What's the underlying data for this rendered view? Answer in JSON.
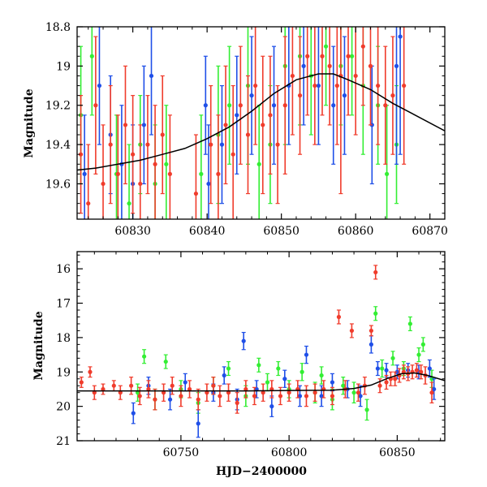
{
  "chart_data": [
    {
      "type": "scatter",
      "title": "",
      "xlabel": "",
      "ylabel": "Magnitude",
      "xlim": [
        60822.5,
        60872
      ],
      "ylim": [
        19.78,
        18.8
      ],
      "y_inverted": true,
      "grid": false,
      "x_ticks": [
        60830,
        60840,
        60850,
        60860,
        60870
      ],
      "y_ticks": [
        18.8,
        19,
        19.2,
        19.4,
        19.6
      ],
      "y_tick_labels": [
        "18.8",
        "19",
        "19.2",
        "19.4",
        "19.6"
      ],
      "series": [
        {
          "color": "#33ee33",
          "points": [
            [
              60823.0,
              19.25,
              0.35
            ],
            [
              60824.5,
              18.95,
              0.3
            ],
            [
              60827.8,
              19.55,
              0.3
            ],
            [
              60829.5,
              19.7,
              0.3
            ],
            [
              60831.0,
              19.4,
              0.25
            ],
            [
              60833.0,
              19.6,
              0.3
            ],
            [
              60834.5,
              19.5,
              0.3
            ],
            [
              60839.2,
              19.55,
              0.3
            ],
            [
              60841.5,
              19.35,
              0.35
            ],
            [
              60843.0,
              19.2,
              0.3
            ],
            [
              60845.5,
              19.1,
              0.4
            ],
            [
              60847.0,
              19.5,
              0.3
            ],
            [
              60848.5,
              19.4,
              0.3
            ],
            [
              60850.5,
              19.0,
              0.4
            ],
            [
              60852.5,
              18.95,
              0.35
            ],
            [
              60854.0,
              19.05,
              0.3
            ],
            [
              60856.0,
              18.9,
              0.3
            ],
            [
              60858.0,
              19.0,
              0.3
            ],
            [
              60859.5,
              18.95,
              0.3
            ],
            [
              60861.0,
              19.1,
              0.35
            ],
            [
              60863.0,
              19.2,
              0.3
            ],
            [
              60864.2,
              19.55,
              0.35
            ],
            [
              60865.5,
              19.4,
              0.3
            ]
          ]
        },
        {
          "color": "#1f4fe8",
          "points": [
            [
              60823.5,
              19.55,
              0.3
            ],
            [
              60825.5,
              19.1,
              0.3
            ],
            [
              60827.0,
              19.35,
              0.3
            ],
            [
              60828.5,
              19.5,
              0.3
            ],
            [
              60830.0,
              19.6,
              0.3
            ],
            [
              60831.5,
              19.3,
              0.3
            ],
            [
              60832.5,
              19.05,
              0.3
            ],
            [
              60839.8,
              19.2,
              0.25
            ],
            [
              60840.2,
              19.6,
              0.3
            ],
            [
              60842.0,
              19.4,
              0.3
            ],
            [
              60844.0,
              19.25,
              0.3
            ],
            [
              60846.0,
              19.15,
              0.3
            ],
            [
              60849.0,
              19.2,
              0.3
            ],
            [
              60851.0,
              19.1,
              0.3
            ],
            [
              60853.0,
              19.0,
              0.3
            ],
            [
              60855.0,
              19.1,
              0.3
            ],
            [
              60857.0,
              19.2,
              0.3
            ],
            [
              60858.5,
              19.15,
              0.3
            ],
            [
              60862.2,
              19.3,
              0.3
            ],
            [
              60865.5,
              19.0,
              0.5
            ],
            [
              60866.0,
              18.85,
              0.6
            ]
          ]
        },
        {
          "color": "#f03c2c",
          "points": [
            [
              60823.0,
              19.45,
              0.3
            ],
            [
              60824.0,
              19.7,
              0.3
            ],
            [
              60825.0,
              19.2,
              0.35
            ],
            [
              60826.0,
              19.6,
              0.3
            ],
            [
              60827.0,
              19.4,
              0.3
            ],
            [
              60828.0,
              19.55,
              0.3
            ],
            [
              60829.0,
              19.3,
              0.3
            ],
            [
              60830.0,
              19.45,
              0.3
            ],
            [
              60831.0,
              19.6,
              0.3
            ],
            [
              60832.0,
              19.4,
              0.25
            ],
            [
              60833.0,
              19.5,
              0.3
            ],
            [
              60834.0,
              19.35,
              0.3
            ],
            [
              60835.0,
              19.55,
              0.3
            ],
            [
              60838.5,
              19.65,
              0.3
            ],
            [
              60840.5,
              19.4,
              0.3
            ],
            [
              60841.5,
              19.55,
              0.3
            ],
            [
              60842.5,
              19.3,
              0.3
            ],
            [
              60843.5,
              19.45,
              0.35
            ],
            [
              60844.5,
              19.2,
              0.3
            ],
            [
              60845.5,
              19.35,
              0.3
            ],
            [
              60846.5,
              19.1,
              0.3
            ],
            [
              60847.5,
              19.3,
              0.35
            ],
            [
              60848.5,
              19.25,
              0.3
            ],
            [
              60849.5,
              19.4,
              0.3
            ],
            [
              60850.5,
              19.2,
              0.35
            ],
            [
              60851.5,
              19.05,
              0.3
            ],
            [
              60852.5,
              19.15,
              0.3
            ],
            [
              60853.5,
              18.95,
              0.3
            ],
            [
              60854.5,
              19.1,
              0.3
            ],
            [
              60855.5,
              18.95,
              0.3
            ],
            [
              60856.5,
              19.0,
              0.3
            ],
            [
              60857.5,
              19.1,
              0.3
            ],
            [
              60858.0,
              19.05,
              0.6
            ],
            [
              60859.0,
              18.95,
              0.3
            ],
            [
              60860.0,
              19.05,
              0.3
            ],
            [
              60861.0,
              18.9,
              0.3
            ],
            [
              60862.0,
              19.0,
              0.3
            ],
            [
              60863.0,
              19.1,
              0.3
            ],
            [
              60864.0,
              19.2,
              0.3
            ],
            [
              60865.0,
              19.15,
              0.3
            ],
            [
              60866.5,
              19.1,
              0.4
            ]
          ]
        }
      ],
      "model_curve": {
        "color": "#000000",
        "x": [
          60822.5,
          60825,
          60828,
          60831,
          60834,
          60837,
          60840,
          60843,
          60846,
          60849,
          60852,
          60855,
          60857,
          60859,
          60862,
          60865,
          60868,
          60872
        ],
        "y": [
          19.53,
          19.52,
          19.5,
          19.48,
          19.45,
          19.42,
          19.37,
          19.31,
          19.23,
          19.14,
          19.07,
          19.04,
          19.04,
          19.07,
          19.12,
          19.19,
          19.25,
          19.33
        ]
      }
    },
    {
      "type": "scatter",
      "title": "",
      "xlabel": "HJD−2400000",
      "ylabel": "Magnitude",
      "xlim": [
        60702,
        60872
      ],
      "ylim": [
        21,
        15.5
      ],
      "y_inverted": true,
      "grid": false,
      "x_ticks": [
        60750,
        60800,
        60850
      ],
      "y_ticks": [
        16,
        17,
        18,
        19,
        20,
        21
      ],
      "y_tick_labels": [
        "16",
        "17",
        "18",
        "19",
        "20",
        "21"
      ],
      "series": [
        {
          "color": "#33ee33",
          "points": [
            [
              60730,
              19.6,
              0.25
            ],
            [
              60733,
              18.55,
              0.2
            ],
            [
              60738,
              19.8,
              0.3
            ],
            [
              60743,
              18.7,
              0.2
            ],
            [
              60750,
              19.5,
              0.25
            ],
            [
              60758,
              19.9,
              0.3
            ],
            [
              60765,
              19.4,
              0.25
            ],
            [
              60772,
              18.9,
              0.2
            ],
            [
              60780,
              19.7,
              0.3
            ],
            [
              60786,
              18.8,
              0.2
            ],
            [
              60790,
              19.3,
              0.25
            ],
            [
              60795,
              18.9,
              0.2
            ],
            [
              60800,
              19.5,
              0.25
            ],
            [
              60806,
              19.0,
              0.25
            ],
            [
              60812,
              19.6,
              0.3
            ],
            [
              60815,
              19.1,
              0.25
            ],
            [
              60820,
              19.8,
              0.3
            ],
            [
              60825,
              19.4,
              0.25
            ],
            [
              60830,
              19.6,
              0.3
            ],
            [
              60836,
              20.1,
              0.3
            ],
            [
              60840,
              17.3,
              0.2
            ],
            [
              60843,
              18.9,
              0.25
            ],
            [
              60848,
              18.6,
              0.2
            ],
            [
              60853,
              18.9,
              0.2
            ],
            [
              60856,
              17.6,
              0.2
            ],
            [
              60860,
              18.5,
              0.2
            ],
            [
              60862,
              18.2,
              0.2
            ],
            [
              60866,
              19.2,
              0.25
            ]
          ]
        },
        {
          "color": "#1f4fe8",
          "points": [
            [
              60728,
              20.2,
              0.3
            ],
            [
              60735,
              19.4,
              0.25
            ],
            [
              60745,
              19.8,
              0.3
            ],
            [
              60752,
              19.3,
              0.25
            ],
            [
              60758,
              20.5,
              0.4
            ],
            [
              60765,
              19.6,
              0.25
            ],
            [
              60770,
              19.1,
              0.25
            ],
            [
              60776,
              19.8,
              0.3
            ],
            [
              60779,
              18.1,
              0.25
            ],
            [
              60785,
              19.5,
              0.25
            ],
            [
              60792,
              20.0,
              0.3
            ],
            [
              60798,
              19.2,
              0.25
            ],
            [
              60805,
              19.7,
              0.3
            ],
            [
              60808,
              18.5,
              0.25
            ],
            [
              60815,
              19.7,
              0.3
            ],
            [
              60820,
              19.3,
              0.25
            ],
            [
              60827,
              19.5,
              0.25
            ],
            [
              60833,
              19.7,
              0.3
            ],
            [
              60838,
              18.2,
              0.25
            ],
            [
              60841,
              18.9,
              0.2
            ],
            [
              60845,
              18.95,
              0.2
            ],
            [
              60850,
              19.0,
              0.2
            ],
            [
              60855,
              18.95,
              0.2
            ],
            [
              60860,
              19.0,
              0.2
            ],
            [
              60865,
              18.9,
              0.25
            ],
            [
              60867,
              19.5,
              0.3
            ]
          ]
        },
        {
          "color": "#f03c2c",
          "points": [
            [
              60704,
              19.3,
              0.15
            ],
            [
              60708,
              19.0,
              0.15
            ],
            [
              60710,
              19.6,
              0.2
            ],
            [
              60714,
              19.5,
              0.15
            ],
            [
              60719,
              19.4,
              0.15
            ],
            [
              60722,
              19.6,
              0.2
            ],
            [
              60727,
              19.4,
              0.25
            ],
            [
              60731,
              19.7,
              0.25
            ],
            [
              60735,
              19.5,
              0.25
            ],
            [
              60738,
              19.8,
              0.3
            ],
            [
              60742,
              19.6,
              0.25
            ],
            [
              60746,
              19.4,
              0.25
            ],
            [
              60750,
              19.7,
              0.3
            ],
            [
              60754,
              19.5,
              0.25
            ],
            [
              60758,
              19.8,
              0.3
            ],
            [
              60762,
              19.6,
              0.25
            ],
            [
              60765,
              19.4,
              0.25
            ],
            [
              60768,
              19.7,
              0.3
            ],
            [
              60772,
              19.6,
              0.25
            ],
            [
              60776,
              19.9,
              0.3
            ],
            [
              60780,
              19.5,
              0.25
            ],
            [
              60784,
              19.7,
              0.25
            ],
            [
              60788,
              19.6,
              0.25
            ],
            [
              60792,
              19.5,
              0.25
            ],
            [
              60796,
              19.7,
              0.25
            ],
            [
              60800,
              19.6,
              0.25
            ],
            [
              60804,
              19.5,
              0.25
            ],
            [
              60808,
              19.7,
              0.3
            ],
            [
              60812,
              19.6,
              0.25
            ],
            [
              60816,
              19.5,
              0.25
            ],
            [
              60820,
              19.7,
              0.25
            ],
            [
              60823,
              17.4,
              0.2
            ],
            [
              60826,
              19.5,
              0.25
            ],
            [
              60829,
              17.8,
              0.2
            ],
            [
              60832,
              19.6,
              0.25
            ],
            [
              60835,
              19.4,
              0.25
            ],
            [
              60838,
              17.8,
              0.15
            ],
            [
              60840,
              16.1,
              0.2
            ],
            [
              60842,
              19.4,
              0.2
            ],
            [
              60845,
              19.3,
              0.2
            ],
            [
              60847,
              19.2,
              0.2
            ],
            [
              60849,
              19.2,
              0.2
            ],
            [
              60851,
              19.1,
              0.2
            ],
            [
              60853,
              19.0,
              0.2
            ],
            [
              60855,
              19.05,
              0.2
            ],
            [
              60857,
              19.0,
              0.2
            ],
            [
              60859,
              18.95,
              0.2
            ],
            [
              60861,
              19.0,
              0.2
            ],
            [
              60863,
              19.1,
              0.25
            ],
            [
              60866,
              19.6,
              0.3
            ]
          ]
        }
      ],
      "model_curve": {
        "color": "#000000",
        "x": [
          60702,
          60720,
          60740,
          60760,
          60780,
          60800,
          60820,
          60830,
          60838,
          60845,
          60852,
          60858,
          60864,
          60872
        ],
        "y": [
          19.55,
          19.55,
          19.55,
          19.55,
          19.55,
          19.54,
          19.53,
          19.48,
          19.38,
          19.2,
          19.05,
          19.03,
          19.1,
          19.25
        ]
      }
    }
  ]
}
